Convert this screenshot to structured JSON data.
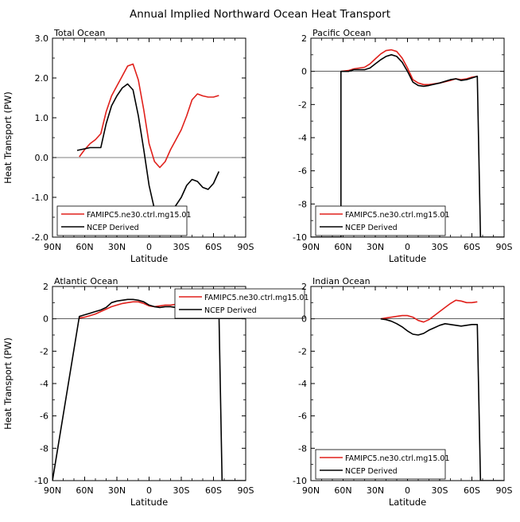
{
  "title": "Annual Implied Northward Ocean Heat Transport",
  "colors": {
    "model": "#e0201b",
    "obs": "#000000"
  },
  "chart_data": [
    {
      "type": "line",
      "title": "Total Ocean",
      "xlabel": "Latitude",
      "ylabel": "Heat Transport (PW)",
      "xlim": [
        -90,
        90
      ],
      "ylim": [
        -2.0,
        3.0
      ],
      "xticks": [
        -90,
        -60,
        -30,
        0,
        30,
        60,
        90
      ],
      "xtick_labels": [
        "90N",
        "60N",
        "30N",
        "0",
        "30S",
        "60S",
        "90S"
      ],
      "yticks": [
        -2,
        -1,
        0,
        1,
        2,
        3
      ],
      "ytick_labels": [
        "-2.0",
        "-1.0",
        "0.0",
        "1.0",
        "2.0",
        "3.0"
      ],
      "zero_line": true,
      "legend": {
        "position": "bottom-left",
        "entries": [
          "FAMIPC5.ne30.ctrl.mg15.01",
          "NCEP Derived"
        ]
      },
      "series": [
        {
          "name": "FAMIPC5.ne30.ctrl.mg15.01",
          "color": "#e0201b",
          "x": [
            -65,
            -60,
            -55,
            -50,
            -45,
            -40,
            -35,
            -30,
            -25,
            -20,
            -15,
            -10,
            -5,
            0,
            5,
            10,
            15,
            20,
            25,
            30,
            35,
            40,
            45,
            50,
            55,
            60,
            65
          ],
          "y": [
            0.02,
            0.2,
            0.35,
            0.45,
            0.6,
            1.15,
            1.55,
            1.8,
            2.05,
            2.3,
            2.35,
            1.95,
            1.2,
            0.35,
            -0.1,
            -0.25,
            -0.1,
            0.2,
            0.45,
            0.7,
            1.05,
            1.45,
            1.6,
            1.55,
            1.52,
            1.52,
            1.56
          ]
        },
        {
          "name": "NCEP Derived",
          "color": "#000000",
          "x": [
            -67,
            -60,
            -55,
            -50,
            -45,
            -40,
            -35,
            -30,
            -25,
            -20,
            -15,
            -10,
            -5,
            0,
            5,
            10,
            15,
            20,
            25,
            30,
            35,
            40,
            45,
            50,
            55,
            60,
            65
          ],
          "y": [
            0.18,
            0.22,
            0.25,
            0.25,
            0.25,
            0.85,
            1.3,
            1.55,
            1.75,
            1.85,
            1.7,
            1.05,
            0.2,
            -0.7,
            -1.3,
            -1.65,
            -1.6,
            -1.4,
            -1.2,
            -1.0,
            -0.7,
            -0.55,
            -0.6,
            -0.75,
            -0.8,
            -0.65,
            -0.35
          ]
        }
      ]
    },
    {
      "type": "line",
      "title": "Pacific Ocean",
      "xlabel": "Latitude",
      "ylabel": "",
      "xlim": [
        -90,
        90
      ],
      "ylim": [
        -10,
        2
      ],
      "xticks": [
        -90,
        -60,
        -30,
        0,
        30,
        60,
        90
      ],
      "xtick_labels": [
        "90N",
        "60N",
        "30N",
        "0",
        "30S",
        "60S",
        "90S"
      ],
      "yticks": [
        -10,
        -8,
        -6,
        -4,
        -2,
        0,
        2
      ],
      "ytick_labels": [
        "-10",
        "-8",
        "-6",
        "-4",
        "-2",
        "0",
        "2"
      ],
      "zero_line": true,
      "legend": {
        "position": "bottom-left",
        "entries": [
          "FAMIPC5.ne30.ctrl.mg15.01",
          "NCEP Derived"
        ]
      },
      "series": [
        {
          "name": "FAMIPC5.ne30.ctrl.mg15.01",
          "color": "#e0201b",
          "x": [
            -62,
            -55,
            -50,
            -45,
            -40,
            -35,
            -30,
            -25,
            -20,
            -15,
            -10,
            -5,
            0,
            5,
            10,
            15,
            20,
            30,
            40,
            45,
            50,
            55,
            60,
            65
          ],
          "y": [
            0.0,
            0.05,
            0.15,
            0.2,
            0.25,
            0.45,
            0.75,
            1.05,
            1.25,
            1.3,
            1.2,
            0.8,
            0.2,
            -0.5,
            -0.7,
            -0.8,
            -0.8,
            -0.7,
            -0.55,
            -0.45,
            -0.5,
            -0.45,
            -0.35,
            -0.3
          ]
        },
        {
          "name": "NCEP Derived",
          "color": "#000000",
          "x": [
            -90,
            -62,
            -62,
            -55,
            -50,
            -45,
            -40,
            -35,
            -30,
            -25,
            -20,
            -15,
            -10,
            -5,
            0,
            5,
            10,
            15,
            20,
            30,
            40,
            45,
            50,
            55,
            60,
            65,
            68,
            90
          ],
          "y": [
            -10,
            -10,
            0.0,
            0.0,
            0.1,
            0.1,
            0.1,
            0.2,
            0.45,
            0.7,
            0.9,
            1.0,
            0.9,
            0.55,
            0.0,
            -0.65,
            -0.85,
            -0.9,
            -0.85,
            -0.7,
            -0.5,
            -0.45,
            -0.55,
            -0.5,
            -0.4,
            -0.3,
            -10,
            -10
          ]
        }
      ]
    },
    {
      "type": "line",
      "title": "Atlantic Ocean",
      "xlabel": "Latitude",
      "ylabel": "Heat Transport (PW)",
      "xlim": [
        -90,
        90
      ],
      "ylim": [
        -10,
        2
      ],
      "xticks": [
        -90,
        -60,
        -30,
        0,
        30,
        60,
        90
      ],
      "xtick_labels": [
        "90N",
        "60N",
        "30N",
        "0",
        "30S",
        "60S",
        "90S"
      ],
      "yticks": [
        -10,
        -8,
        -6,
        -4,
        -2,
        0,
        2
      ],
      "ytick_labels": [
        "-10",
        "-8",
        "-6",
        "-4",
        "-2",
        "0",
        "2"
      ],
      "zero_line": true,
      "legend": {
        "position": "top-right",
        "entries": [
          "FAMIPC5.ne30.ctrl.mg15.01",
          "NCEP Derived"
        ]
      },
      "series": [
        {
          "name": "FAMIPC5.ne30.ctrl.mg15.01",
          "color": "#e0201b",
          "x": [
            -65,
            -60,
            -55,
            -50,
            -45,
            -40,
            -35,
            -30,
            -25,
            -20,
            -15,
            -10,
            -5,
            0,
            5,
            10,
            15,
            20,
            25,
            30,
            35,
            40,
            45,
            50,
            55,
            60,
            65
          ],
          "y": [
            0.05,
            0.1,
            0.2,
            0.3,
            0.45,
            0.6,
            0.75,
            0.85,
            0.95,
            1.0,
            1.05,
            1.05,
            0.95,
            0.8,
            0.75,
            0.8,
            0.85,
            0.85,
            0.9,
            0.85,
            0.9,
            0.95,
            0.95,
            0.85,
            0.8,
            0.75,
            0.75
          ]
        },
        {
          "name": "NCEP Derived",
          "color": "#000000",
          "x": [
            -90,
            -65,
            -60,
            -55,
            -50,
            -45,
            -40,
            -35,
            -30,
            -25,
            -20,
            -15,
            -10,
            -5,
            0,
            5,
            10,
            15,
            20,
            25,
            30,
            35,
            40,
            45,
            50,
            55,
            60,
            65,
            68,
            90
          ],
          "y": [
            -10,
            0.15,
            0.25,
            0.35,
            0.45,
            0.55,
            0.7,
            1.0,
            1.1,
            1.15,
            1.2,
            1.2,
            1.15,
            1.05,
            0.85,
            0.75,
            0.7,
            0.75,
            0.75,
            0.7,
            0.65,
            0.65,
            0.7,
            0.7,
            0.65,
            0.6,
            0.55,
            0.55,
            -10,
            -10
          ]
        }
      ]
    },
    {
      "type": "line",
      "title": "Indian Ocean",
      "xlabel": "Latitude",
      "ylabel": "",
      "xlim": [
        -90,
        90
      ],
      "ylim": [
        -10,
        2
      ],
      "xticks": [
        -90,
        -60,
        -30,
        0,
        30,
        60,
        90
      ],
      "xtick_labels": [
        "90N",
        "60N",
        "30N",
        "0",
        "30S",
        "60S",
        "90S"
      ],
      "yticks": [
        -10,
        -8,
        -6,
        -4,
        -2,
        0,
        2
      ],
      "ytick_labels": [
        "-10",
        "-8",
        "-6",
        "-4",
        "-2",
        "0",
        "2"
      ],
      "zero_line": true,
      "legend": {
        "position": "bottom-left",
        "entries": [
          "FAMIPC5.ne30.ctrl.mg15.01",
          "NCEP Derived"
        ]
      },
      "series": [
        {
          "name": "FAMIPC5.ne30.ctrl.mg15.01",
          "color": "#e0201b",
          "x": [
            -25,
            -20,
            -15,
            -10,
            -5,
            0,
            5,
            10,
            15,
            20,
            25,
            30,
            35,
            40,
            45,
            50,
            55,
            60,
            65
          ],
          "y": [
            0.0,
            0.05,
            0.1,
            0.15,
            0.2,
            0.2,
            0.1,
            -0.1,
            -0.2,
            -0.05,
            0.2,
            0.45,
            0.7,
            0.95,
            1.15,
            1.1,
            1.0,
            1.0,
            1.05
          ]
        },
        {
          "name": "NCEP Derived",
          "color": "#000000",
          "x": [
            -25,
            -20,
            -15,
            -10,
            -5,
            0,
            5,
            10,
            15,
            20,
            25,
            30,
            35,
            40,
            45,
            50,
            55,
            60,
            65,
            68,
            90
          ],
          "y": [
            0.0,
            -0.05,
            -0.15,
            -0.3,
            -0.5,
            -0.75,
            -0.95,
            -1.0,
            -0.9,
            -0.7,
            -0.55,
            -0.4,
            -0.3,
            -0.35,
            -0.4,
            -0.45,
            -0.4,
            -0.35,
            -0.35,
            -10,
            -10
          ]
        }
      ]
    }
  ]
}
